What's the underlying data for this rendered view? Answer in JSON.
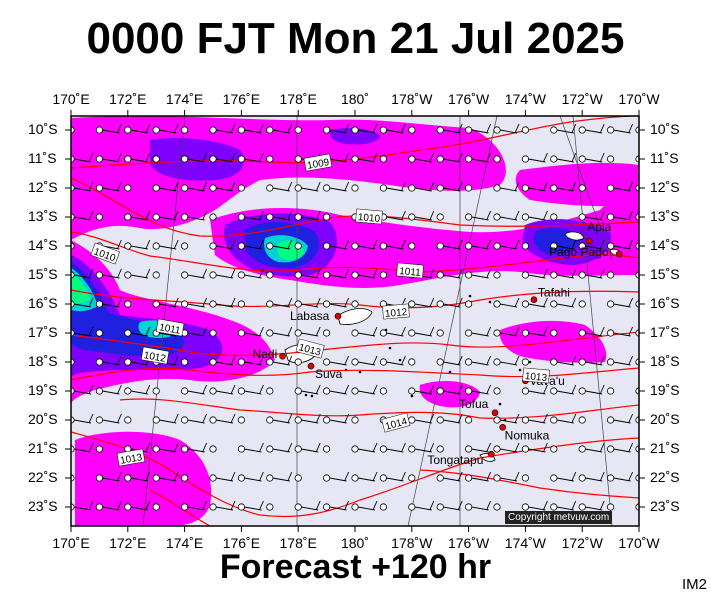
{
  "title": "0000 FJT Mon 21 Jul 2025",
  "footer": "Forecast +120 hr",
  "image_code": "IM2",
  "copyright": "Copyright metvuw.com",
  "lon_labels": [
    "170˚E",
    "172˚E",
    "174˚E",
    "176˚E",
    "178˚E",
    "180˚",
    "178˚W",
    "176˚W",
    "174˚W",
    "172˚W",
    "170˚W"
  ],
  "lat_labels": [
    "10˚S",
    "11˚S",
    "12˚S",
    "13˚S",
    "14˚S",
    "15˚S",
    "16˚S",
    "17˚S",
    "18˚S",
    "19˚S",
    "20˚S",
    "21˚S",
    "22˚S",
    "23˚S"
  ],
  "places": [
    {
      "name": "Apia",
      "lon": -171.75,
      "lat": -13.83
    },
    {
      "name": "Pago Pago",
      "lon": -170.7,
      "lat": -14.28
    },
    {
      "name": "Tafahi",
      "lon": -173.7,
      "lat": -15.85
    },
    {
      "name": "Labasa",
      "lon": 179.4,
      "lat": -16.42
    },
    {
      "name": "Nadi",
      "lon": 177.45,
      "lat": -17.8
    },
    {
      "name": "Suva",
      "lon": 178.45,
      "lat": -18.14
    },
    {
      "name": "Vava'u",
      "lon": -174.0,
      "lat": -18.65
    },
    {
      "name": "Tofua",
      "lon": -175.07,
      "lat": -19.75
    },
    {
      "name": "Nomuka",
      "lon": -174.8,
      "lat": -20.25
    },
    {
      "name": "Tongatapu",
      "lon": -175.2,
      "lat": -21.18
    }
  ],
  "isobar_labels": [
    "1009",
    "1010",
    "1010",
    "1011",
    "1011",
    "1012",
    "1012",
    "1013",
    "1013",
    "1013",
    "1014"
  ],
  "colors": {
    "background": "#e6e6f5",
    "rain_light": "#ff00ff",
    "rain_medium": "#7f00ff",
    "rain_heavy": "#2020e0",
    "rain_very_heavy": "#00d2d2",
    "rain_extreme": "#00ff80",
    "isobar": "#ff0000"
  }
}
